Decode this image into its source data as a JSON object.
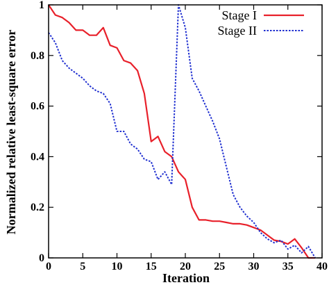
{
  "chart_data": {
    "type": "line",
    "title": "",
    "xlabel": "Iteration",
    "ylabel": "Normalized relative least-square error",
    "xlim": [
      0,
      40
    ],
    "ylim": [
      0,
      1
    ],
    "x_ticks": [
      "0",
      "5",
      "10",
      "15",
      "20",
      "25",
      "30",
      "35",
      "40"
    ],
    "y_ticks": [
      "0",
      "0.2",
      "0.4",
      "0.6",
      "0.8",
      "1"
    ],
    "grid": false,
    "legend_position": "top-right",
    "series": [
      {
        "name": "Stage I",
        "color": "#e8202a",
        "style": "solid",
        "x": [
          0,
          1,
          2,
          3,
          4,
          5,
          6,
          7,
          8,
          9,
          10,
          11,
          12,
          13,
          14,
          15,
          16,
          17,
          18,
          19,
          20,
          21,
          22,
          23,
          24,
          25,
          26,
          27,
          28,
          29,
          30,
          31,
          32,
          33,
          34,
          35,
          36,
          37,
          38,
          39
        ],
        "y": [
          1.0,
          0.96,
          0.95,
          0.93,
          0.9,
          0.9,
          0.88,
          0.88,
          0.91,
          0.84,
          0.83,
          0.78,
          0.77,
          0.74,
          0.65,
          0.46,
          0.48,
          0.42,
          0.4,
          0.34,
          0.31,
          0.2,
          0.15,
          0.15,
          0.145,
          0.145,
          0.14,
          0.135,
          0.135,
          0.13,
          0.12,
          0.11,
          0.09,
          0.07,
          0.065,
          0.055,
          0.075,
          0.04,
          0.0,
          0.0
        ]
      },
      {
        "name": "Stage II",
        "color": "#1f2fd0",
        "style": "dotted",
        "x": [
          0,
          1,
          2,
          3,
          4,
          5,
          6,
          7,
          8,
          9,
          10,
          11,
          12,
          13,
          14,
          15,
          16,
          17,
          18,
          19,
          20,
          21,
          22,
          23,
          24,
          25,
          26,
          27,
          28,
          29,
          30,
          31,
          32,
          33,
          34,
          35,
          36,
          37,
          38,
          39
        ],
        "y": [
          0.89,
          0.85,
          0.78,
          0.75,
          0.73,
          0.71,
          0.68,
          0.66,
          0.65,
          0.61,
          0.5,
          0.5,
          0.45,
          0.43,
          0.39,
          0.38,
          0.31,
          0.34,
          0.29,
          1.0,
          0.91,
          0.71,
          0.66,
          0.6,
          0.54,
          0.47,
          0.36,
          0.25,
          0.2,
          0.165,
          0.14,
          0.1,
          0.075,
          0.06,
          0.07,
          0.035,
          0.05,
          0.02,
          0.045,
          0.0
        ]
      }
    ]
  }
}
